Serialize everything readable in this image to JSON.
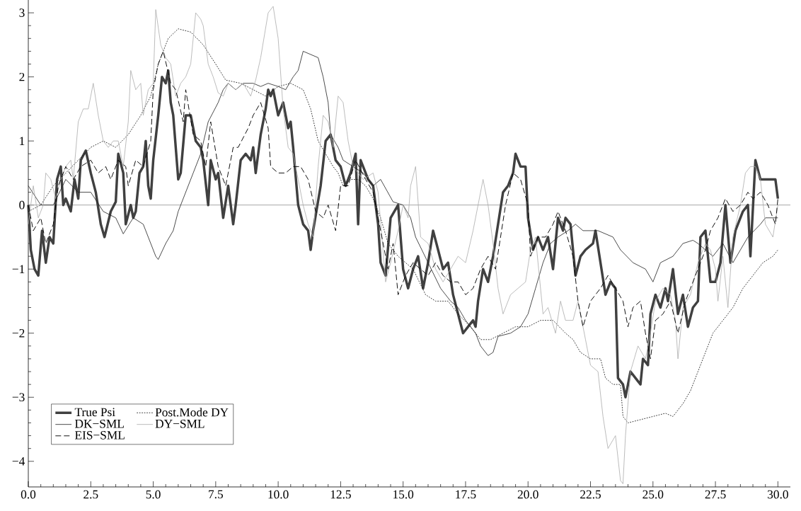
{
  "chart_data": {
    "type": "line",
    "xlim": [
      0,
      30.5
    ],
    "ylim": [
      -4.4,
      3.2
    ],
    "xticks": [
      {
        "value": 0,
        "label": "0.0"
      },
      {
        "value": 2.5,
        "label": "2.5"
      },
      {
        "value": 5,
        "label": "5.0"
      },
      {
        "value": 7.5,
        "label": "7.5"
      },
      {
        "value": 10,
        "label": "10.0"
      },
      {
        "value": 12.5,
        "label": "12.5"
      },
      {
        "value": 15,
        "label": "15.0"
      },
      {
        "value": 17.5,
        "label": "17.5"
      },
      {
        "value": 20,
        "label": "20.0"
      },
      {
        "value": 22.5,
        "label": "22.5"
      },
      {
        "value": 25,
        "label": "25.0"
      },
      {
        "value": 27.5,
        "label": "27.5"
      },
      {
        "value": 30,
        "label": "30.0"
      }
    ],
    "yticks": [
      {
        "value": -4,
        "label": "−4"
      },
      {
        "value": -3,
        "label": "−3"
      },
      {
        "value": -2,
        "label": "−2"
      },
      {
        "value": -1,
        "label": "−1"
      },
      0,
      1,
      2,
      3
    ],
    "legend": "bottom left",
    "ref_lines": [
      {
        "axis": "y",
        "value": 0,
        "color": "#a0a0a0"
      }
    ],
    "series": [
      {
        "name": "True Psi",
        "color": "#404040",
        "line_style": "solid",
        "x": [
          0,
          0.1,
          0.25,
          0.4,
          0.55,
          0.7,
          0.85,
          1.0,
          1.15,
          1.3,
          1.4,
          1.5,
          1.7,
          1.85,
          2.0,
          2.1,
          2.3,
          2.5,
          2.7,
          2.9,
          3.05,
          3.3,
          3.5,
          3.6,
          3.8,
          3.9,
          4.1,
          4.2,
          4.3,
          4.45,
          4.6,
          4.7,
          4.8,
          4.9,
          5.0,
          5.2,
          5.35,
          5.5,
          5.6,
          5.7,
          5.8,
          6.0,
          6.1,
          6.3,
          6.5,
          6.7,
          6.9,
          7.0,
          7.2,
          7.3,
          7.5,
          7.6,
          7.8,
          8.0,
          8.2,
          8.3,
          8.5,
          8.7,
          8.9,
          9.0,
          9.1,
          9.3,
          9.5,
          9.6,
          9.7,
          9.8,
          10.0,
          10.2,
          10.4,
          10.5,
          10.6,
          10.8,
          11.0,
          11.2,
          11.3,
          11.4,
          11.7,
          11.9,
          12.1,
          12.3,
          12.5,
          12.7,
          12.9,
          13.1,
          13.2,
          13.3,
          13.6,
          13.8,
          14.0,
          14.1,
          14.3,
          14.5,
          14.8,
          15.0,
          15.2,
          15.4,
          15.6,
          15.8,
          16.0,
          16.2,
          16.4,
          16.6,
          16.8,
          17.0,
          17.2,
          17.4,
          17.6,
          17.8,
          17.9,
          18.0,
          18.2,
          18.4,
          18.6,
          18.8,
          19.0,
          19.2,
          19.4,
          19.5,
          19.7,
          19.9,
          20.0,
          20.2,
          20.4,
          20.6,
          20.8,
          21.0,
          21.2,
          21.4,
          21.5,
          21.7,
          21.9,
          22.1,
          22.3,
          22.6,
          22.7,
          22.9,
          23.1,
          23.3,
          23.5,
          23.6,
          23.8,
          23.9,
          24.1,
          24.3,
          24.5,
          24.6,
          24.8,
          24.9,
          25.1,
          25.3,
          25.5,
          25.6,
          25.8,
          26.0,
          26.2,
          26.4,
          26.6,
          26.8,
          26.9,
          27.1,
          27.3,
          27.5,
          27.7,
          27.9,
          28.1,
          28.3,
          28.6,
          28.8,
          28.9,
          29.1,
          29.3,
          29.6,
          29.9,
          30.0
        ],
        "values": [
          0,
          -0.7,
          -1.0,
          -1.1,
          -0.4,
          -0.9,
          -0.5,
          -0.6,
          0.4,
          0.6,
          0.0,
          0.1,
          -0.1,
          0.4,
          0.1,
          0.7,
          0.85,
          0.5,
          0.2,
          -0.3,
          -0.5,
          -0.1,
          0.05,
          0.8,
          0.5,
          -0.3,
          0.0,
          -0.2,
          -0.1,
          0.5,
          0.6,
          1.0,
          0.3,
          0.1,
          0.7,
          1.4,
          2.0,
          1.9,
          2.1,
          1.6,
          1.4,
          0.4,
          0.5,
          1.4,
          1.4,
          1.0,
          0.9,
          0.7,
          0.0,
          0.7,
          0.4,
          0.5,
          -0.2,
          0.3,
          -0.3,
          0.0,
          0.7,
          0.8,
          0.7,
          0.9,
          0.5,
          1.1,
          1.5,
          1.8,
          1.7,
          1.8,
          1.4,
          1.6,
          1.2,
          1.3,
          0.9,
          0.0,
          -0.3,
          -0.4,
          -0.7,
          -0.4,
          0.3,
          1.0,
          1.1,
          0.7,
          0.6,
          0.3,
          0.5,
          0.8,
          -0.3,
          0.7,
          0.4,
          0.3,
          -0.3,
          -0.9,
          -1.1,
          -0.2,
          0.0,
          -1.0,
          -1.3,
          -1.0,
          -0.8,
          -1.3,
          -0.9,
          -0.4,
          -0.7,
          -1.0,
          -0.9,
          -1.4,
          -1.7,
          -2.0,
          -1.9,
          -1.8,
          -1.9,
          -1.5,
          -1.0,
          -1.2,
          -0.8,
          -0.3,
          0.2,
          0.3,
          0.5,
          0.8,
          0.6,
          0.6,
          -0.2,
          -0.7,
          -0.5,
          -0.7,
          -0.5,
          -1.0,
          -0.2,
          -0.4,
          -0.2,
          -0.3,
          -1.1,
          -0.8,
          -0.7,
          -0.6,
          -0.4,
          -0.9,
          -1.4,
          -1.2,
          -1.3,
          -2.7,
          -2.8,
          -3.0,
          -2.6,
          -2.7,
          -2.8,
          -2.4,
          -2.5,
          -1.7,
          -1.4,
          -1.6,
          -1.3,
          -1.5,
          -1.0,
          -1.7,
          -1.4,
          -1.9,
          -1.6,
          -1.5,
          -0.5,
          -0.4,
          -1.2,
          -1.2,
          -0.9,
          0.0,
          -0.9,
          -0.4,
          -0.1,
          0.0,
          -0.8,
          0.7,
          0.4,
          0.4,
          0.4,
          0.1
        ]
      },
      {
        "name": "Post.Mode DY",
        "color": "#000000",
        "line_style": "dotted",
        "x": [
          0,
          0.5,
          1.0,
          1.5,
          2.0,
          2.5,
          3.0,
          3.5,
          4.0,
          4.5,
          4.9,
          5.2,
          5.6,
          6.0,
          6.5,
          7.0,
          7.5,
          7.9,
          8.5,
          9.0,
          9.5,
          10.0,
          10.5,
          11.0,
          11.3,
          11.6,
          11.9,
          12.2,
          12.4,
          12.6,
          12.9,
          13.2,
          13.5,
          13.8,
          14.1,
          14.4,
          14.8,
          15.1,
          15.4,
          15.9,
          16.3,
          16.8,
          17.2,
          17.7,
          18.1,
          18.5,
          19.0,
          19.5,
          20.0,
          20.5,
          21.0,
          21.5,
          21.8,
          22.1,
          22.5,
          22.9,
          23.1,
          23.4,
          23.7,
          23.8,
          24.0,
          24.5,
          25.0,
          25.5,
          25.8,
          26.2,
          26.5,
          26.8,
          27.1,
          27.4,
          27.8,
          28.2,
          28.6,
          29.0,
          29.4,
          29.8,
          30.0
        ],
        "values": [
          -0.1,
          0.0,
          0.3,
          0.5,
          0.7,
          0.9,
          1.0,
          0.9,
          1.1,
          1.4,
          1.7,
          2.2,
          2.6,
          2.75,
          2.7,
          2.5,
          2.2,
          1.95,
          1.9,
          1.8,
          1.7,
          1.85,
          1.9,
          1.8,
          1.5,
          1.0,
          0.8,
          0.6,
          0.5,
          0.3,
          0.4,
          0.4,
          0.3,
          0.1,
          -0.2,
          -0.6,
          -0.8,
          -0.9,
          -1.0,
          -1.4,
          -1.5,
          -1.5,
          -1.7,
          -1.9,
          -2.1,
          -2.1,
          -2.0,
          -1.9,
          -1.9,
          -1.8,
          -1.8,
          -2.0,
          -2.1,
          -2.3,
          -2.4,
          -2.4,
          -2.7,
          -2.8,
          -2.8,
          -3.3,
          -3.4,
          -3.35,
          -3.3,
          -3.25,
          -3.3,
          -3.1,
          -2.9,
          -2.6,
          -2.3,
          -2.0,
          -1.8,
          -1.6,
          -1.3,
          -1.1,
          -0.9,
          -0.8,
          -0.7
        ]
      },
      {
        "name": "DK−SML",
        "color": "#202020",
        "line_style": "solid",
        "x": [
          0,
          0.5,
          1.0,
          1.5,
          2.0,
          2.5,
          3.0,
          3.5,
          3.8,
          4.2,
          4.6,
          4.9,
          5.1,
          5.2,
          5.5,
          5.8,
          6.0,
          6.3,
          6.6,
          6.9,
          7.2,
          7.6,
          7.8,
          8.0,
          8.3,
          8.6,
          9.0,
          9.3,
          9.6,
          10.0,
          10.3,
          10.6,
          10.8,
          11.0,
          11.3,
          11.6,
          11.8,
          12.0,
          12.1,
          12.4,
          12.6,
          13.0,
          13.4,
          13.8,
          14.1,
          14.6,
          15.0,
          15.3,
          15.5,
          16.0,
          16.5,
          16.9,
          17.2,
          17.5,
          17.9,
          18.1,
          18.4,
          18.6,
          18.8,
          19.3,
          19.7,
          20.0,
          20.3,
          20.6,
          20.9,
          21.2,
          21.6,
          21.9,
          22.2,
          22.8,
          23.4,
          23.7,
          24.2,
          24.7,
          25.0,
          25.3,
          25.8,
          26.2,
          26.6,
          26.8,
          27.1,
          27.4,
          27.8,
          28.2,
          28.5,
          28.8,
          29.3,
          29.5,
          30.0
        ],
        "values": [
          0.3,
          0.0,
          0.0,
          0.4,
          0.2,
          0.2,
          -0.1,
          -0.2,
          -0.45,
          -0.2,
          -0.3,
          -0.6,
          -0.8,
          -0.85,
          -0.6,
          -0.4,
          -0.1,
          0.2,
          0.5,
          0.8,
          1.3,
          1.6,
          1.8,
          1.9,
          1.8,
          1.9,
          1.9,
          1.85,
          1.9,
          1.85,
          1.8,
          2.0,
          2.1,
          2.4,
          2.35,
          2.3,
          2.0,
          1.6,
          1.1,
          0.9,
          0.7,
          0.6,
          0.5,
          0.3,
          0.4,
          0.05,
          0.0,
          -0.2,
          -0.5,
          -0.9,
          -1.3,
          -1.5,
          -1.6,
          -1.8,
          -2.0,
          -2.2,
          -2.35,
          -2.3,
          -2.05,
          -2.0,
          -1.9,
          -1.7,
          -1.3,
          -0.9,
          -0.6,
          -0.5,
          -0.4,
          -0.3,
          -0.4,
          -0.4,
          -0.5,
          -0.7,
          -0.9,
          -1.0,
          -1.2,
          -0.9,
          -0.8,
          -0.6,
          -0.55,
          -0.6,
          -0.7,
          -0.8,
          -0.6,
          -0.9,
          -0.7,
          -0.5,
          -0.3,
          -0.2,
          -0.2
        ]
      },
      {
        "name": "DY−SML",
        "color": "#ababab",
        "line_style": "solid",
        "x": [
          0,
          0.2,
          0.4,
          0.6,
          0.7,
          0.9,
          1.1,
          1.3,
          1.5,
          1.7,
          1.8,
          2.0,
          2.2,
          2.4,
          2.6,
          2.8,
          3.0,
          3.2,
          3.4,
          3.6,
          3.8,
          4.0,
          4.1,
          4.3,
          4.5,
          4.6,
          4.8,
          5.0,
          5.1,
          5.3,
          5.5,
          5.7,
          5.9,
          6.1,
          6.3,
          6.5,
          6.7,
          6.9,
          7.0,
          7.2,
          7.4,
          7.6,
          7.8,
          8.0,
          8.3,
          8.6,
          8.9,
          9.1,
          9.3,
          9.6,
          9.8,
          10.0,
          10.2,
          10.4,
          10.6,
          10.8,
          11.0,
          11.2,
          11.4,
          11.6,
          11.8,
          12.0,
          12.2,
          12.4,
          12.6,
          12.8,
          13.0,
          13.4,
          13.8,
          14.0,
          14.3,
          14.5,
          14.8,
          15.0,
          15.2,
          15.3,
          15.5,
          15.7,
          16.0,
          16.3,
          16.6,
          16.9,
          17.2,
          17.5,
          17.8,
          18.0,
          18.2,
          18.4,
          18.6,
          18.8,
          19.0,
          19.3,
          19.6,
          19.9,
          20.1,
          20.3,
          20.4,
          20.6,
          20.8,
          21.1,
          21.3,
          21.5,
          21.8,
          22.0,
          22.3,
          22.5,
          22.8,
          23.0,
          23.2,
          23.5,
          23.7,
          23.8,
          23.9,
          24.1,
          24.4,
          24.7,
          24.9,
          25.1,
          25.4,
          25.7,
          25.9,
          26.0,
          26.2,
          26.5,
          26.8,
          27.1,
          27.3,
          27.5,
          27.6,
          27.8,
          28.0,
          28.2,
          28.5,
          28.7,
          28.9,
          29.1,
          29.3,
          29.5,
          29.8,
          30.0
        ],
        "values": [
          -0.3,
          0.3,
          -0.2,
          0.0,
          0.5,
          0.4,
          0.1,
          0.4,
          0.6,
          0.7,
          0.4,
          1.3,
          1.5,
          1.5,
          1.9,
          1.4,
          1.0,
          0.9,
          1.0,
          1.0,
          0.6,
          1.3,
          2.1,
          1.8,
          1.9,
          1.4,
          1.8,
          1.9,
          3.05,
          2.5,
          2.3,
          2.2,
          1.7,
          1.9,
          2.0,
          2.2,
          3.0,
          2.9,
          2.8,
          2.2,
          2.0,
          1.75,
          1.7,
          1.9,
          1.8,
          1.9,
          1.7,
          1.95,
          2.3,
          3.0,
          3.1,
          2.6,
          1.5,
          0.9,
          0.8,
          0.4,
          0.0,
          -0.3,
          -0.5,
          0.6,
          1.4,
          1.3,
          0.9,
          1.7,
          1.6,
          1.0,
          0.6,
          0.4,
          0.5,
          0.2,
          -1.2,
          -0.9,
          -0.4,
          0.0,
          -0.2,
          0.3,
          0.6,
          -0.5,
          -0.6,
          -1.0,
          -1.2,
          -1.0,
          -0.8,
          -0.9,
          -0.4,
          0.0,
          0.4,
          0.0,
          -0.6,
          -1.3,
          -1.7,
          -1.4,
          -1.3,
          -1.2,
          -0.7,
          -0.5,
          -0.9,
          -1.7,
          -1.6,
          -2.0,
          -1.5,
          -1.8,
          -1.8,
          -1.5,
          -2.1,
          -2.5,
          -2.6,
          -3.3,
          -3.8,
          -3.6,
          -4.3,
          -4.35,
          -3.6,
          -2.6,
          -2.2,
          -2.4,
          -2.0,
          -1.5,
          -1.3,
          -1.4,
          -1.8,
          -2.4,
          -1.6,
          -1.4,
          -0.9,
          -0.6,
          -0.7,
          -1.0,
          -1.5,
          -0.8,
          -1.6,
          -0.5,
          0.0,
          0.5,
          0.6,
          0.6,
          0.4,
          -0.3,
          -0.5,
          0.0
        ]
      },
      {
        "name": "EIS−SML",
        "color": "#000000",
        "line_style": "dashed",
        "x": [
          0,
          0.2,
          0.5,
          0.7,
          1.0,
          1.2,
          1.5,
          1.8,
          2.1,
          2.5,
          2.8,
          3.1,
          3.3,
          3.6,
          3.9,
          4.0,
          4.3,
          4.6,
          4.9,
          5.0,
          5.2,
          5.4,
          5.7,
          5.9,
          6.2,
          6.3,
          6.6,
          6.9,
          7.1,
          7.3,
          7.6,
          7.9,
          8.2,
          8.4,
          8.8,
          9.0,
          9.3,
          9.6,
          9.7,
          10.0,
          10.3,
          10.6,
          10.9,
          11.2,
          11.5,
          11.8,
          12.0,
          12.3,
          12.5,
          12.8,
          13.1,
          13.5,
          13.8,
          14.1,
          14.4,
          14.6,
          14.8,
          15.1,
          15.4,
          15.7,
          16.0,
          16.3,
          16.6,
          16.9,
          17.2,
          17.5,
          17.8,
          18.1,
          18.4,
          18.7,
          19.1,
          19.4,
          19.7,
          20.0,
          20.1,
          20.4,
          20.7,
          21.0,
          21.2,
          21.5,
          21.8,
          22.0,
          22.2,
          22.5,
          22.9,
          23.2,
          23.5,
          23.8,
          24.0,
          24.2,
          24.5,
          24.7,
          24.9,
          25.1,
          25.4,
          25.7,
          26.0,
          26.3,
          26.5,
          26.8,
          27.1,
          27.3,
          27.6,
          27.9,
          28.2,
          28.5,
          28.8,
          29.0,
          29.3,
          29.6,
          29.9,
          30.0
        ],
        "values": [
          0.0,
          -0.4,
          -0.2,
          -0.6,
          -0.3,
          0.3,
          0.6,
          0.4,
          0.6,
          0.7,
          0.5,
          0.6,
          0.4,
          0.7,
          0.6,
          0.3,
          0.7,
          0.6,
          1.0,
          1.8,
          2.2,
          2.4,
          1.9,
          1.8,
          1.3,
          1.8,
          1.1,
          1.0,
          0.6,
          1.3,
          0.6,
          0.3,
          0.9,
          0.9,
          1.2,
          1.4,
          1.6,
          1.2,
          0.6,
          0.5,
          0.5,
          0.6,
          0.6,
          0.4,
          -0.1,
          -0.2,
          0.0,
          -0.4,
          0.3,
          0.3,
          0.7,
          0.4,
          0.2,
          -0.4,
          -1.0,
          -0.6,
          -1.4,
          -1.1,
          -0.9,
          -1.0,
          -1.1,
          -0.9,
          -1.1,
          -1.2,
          -1.2,
          -1.4,
          -1.3,
          -1.0,
          -0.8,
          -1.0,
          0.0,
          0.5,
          0.4,
          0.0,
          -0.8,
          -0.5,
          -0.5,
          -0.3,
          -0.1,
          -0.4,
          -0.8,
          -1.5,
          -1.9,
          -1.5,
          -1.3,
          -1.1,
          -1.3,
          -1.5,
          -1.9,
          -1.6,
          -1.5,
          -2.0,
          -2.4,
          -1.8,
          -1.7,
          -1.5,
          -2.0,
          -1.5,
          -1.3,
          -1.0,
          -0.7,
          -0.4,
          -0.2,
          0.1,
          -0.1,
          0.0,
          0.2,
          0.1,
          0.2,
          0.0,
          -0.3,
          0.1
        ]
      }
    ]
  }
}
